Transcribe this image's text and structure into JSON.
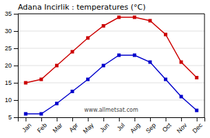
{
  "chart_data": {
    "type": "line",
    "title": "Adana Incirlik : temperatures (°C)",
    "annotation": "www.allmetsat.com",
    "categories": [
      "Jan",
      "Feb",
      "Mar",
      "Apr",
      "May",
      "Jun",
      "Jul",
      "Aug",
      "Sep",
      "Oct",
      "Nov",
      "Dec"
    ],
    "series": [
      {
        "color": "#cc0000",
        "marker": "square",
        "line_style": "solid",
        "values": [
          15,
          16,
          20,
          24,
          28,
          31.5,
          34,
          34,
          33,
          29,
          21,
          16.5
        ]
      },
      {
        "color": "#0000cc",
        "marker": "square",
        "line_style": "solid",
        "values": [
          6,
          6,
          9,
          12.5,
          16,
          20,
          23,
          23,
          21,
          16,
          11,
          7
        ]
      }
    ],
    "ylim": [
      5,
      35
    ],
    "yticks": [
      5,
      10,
      15,
      20,
      25,
      30,
      35
    ],
    "grid": true
  }
}
